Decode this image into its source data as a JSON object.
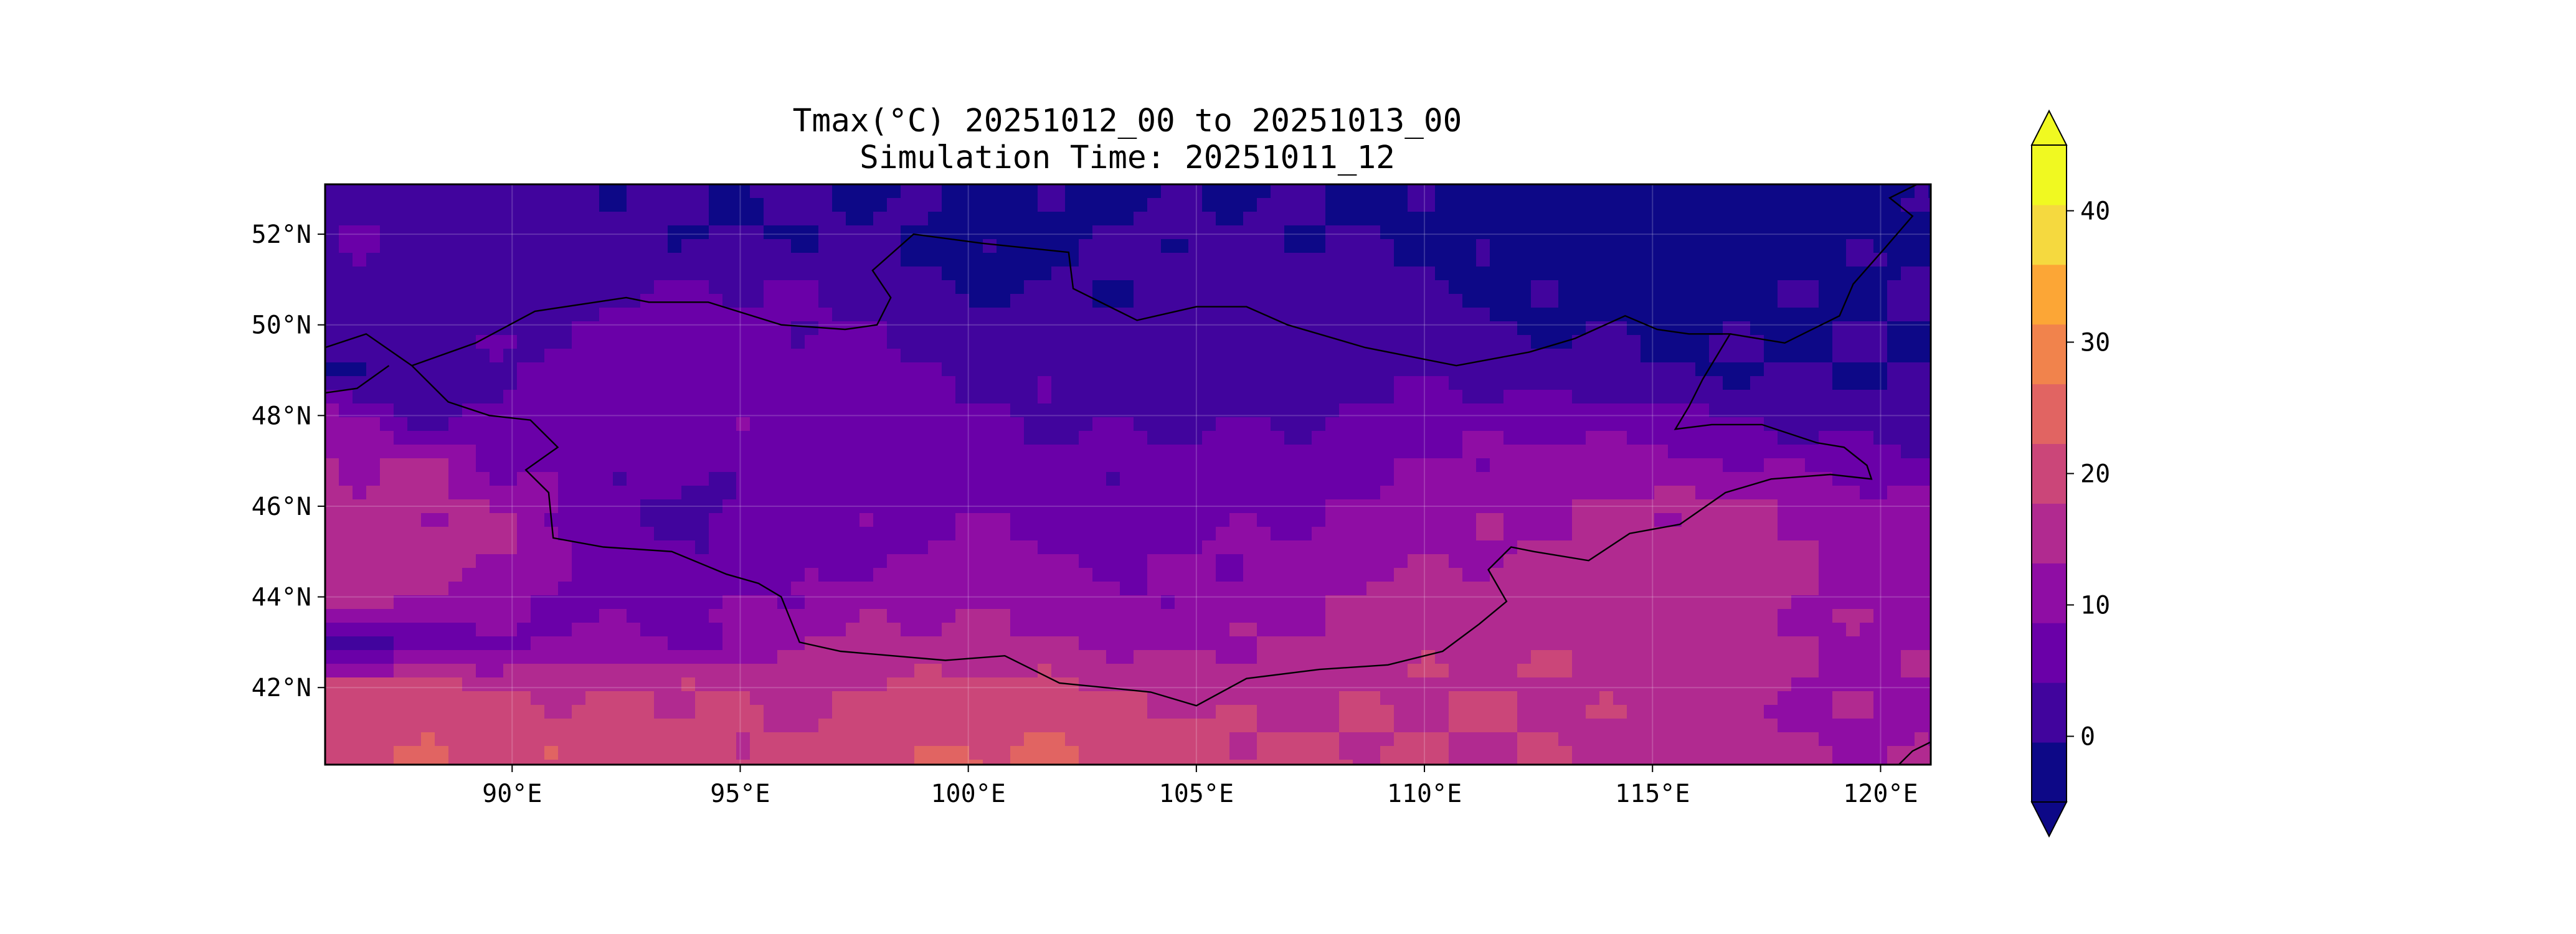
{
  "title": "Tmax(°C) 20251012_00 to 20251013_00",
  "subtitle": "Simulation Time: 20251011_12",
  "map": {
    "projection": "PlateCarree",
    "extent": {
      "lon": [
        85.9,
        121.1
      ],
      "lat": [
        40.3,
        53.1
      ]
    },
    "x_ticks": [
      "90°E",
      "95°E",
      "100°E",
      "105°E",
      "110°E",
      "115°E",
      "120°E"
    ],
    "x_tick_values": [
      90,
      95,
      100,
      105,
      110,
      115,
      120
    ],
    "y_ticks": [
      "42°N",
      "44°N",
      "46°N",
      "48°N",
      "50°N",
      "52°N"
    ],
    "y_tick_values": [
      42,
      44,
      46,
      48,
      50,
      52
    ],
    "gridlines": true,
    "borders": "country borders (Mongolia, China, Russia, Kazakhstan)"
  },
  "colorbar": {
    "orientation": "vertical",
    "placement": "right",
    "extend": "both",
    "levels": [
      -5,
      0,
      5,
      10,
      15,
      20,
      25,
      30,
      35,
      40,
      45
    ],
    "tick_labels": [
      "0",
      "10",
      "20",
      "30",
      "40"
    ],
    "tick_values": [
      0,
      10,
      20,
      30,
      40
    ],
    "colormap": "plasma",
    "colors": [
      "#0d0887",
      "#41049d",
      "#6a00a8",
      "#8f0da4",
      "#b12a90",
      "#cb4679",
      "#e16462",
      "#f1834c",
      "#fca636",
      "#f5d93f",
      "#f0f921"
    ],
    "under_color": "#0d0887",
    "over_color": "#f0f921"
  },
  "chart_data": {
    "type": "heatmap",
    "title": "Tmax(°C) 20251012_00 to 20251013_00",
    "subtitle": "Simulation Time: 20251011_12",
    "xlim": [
      85.9,
      121.1
    ],
    "ylim": [
      40.3,
      53.1
    ],
    "x": [
      86,
      88,
      90,
      92,
      94,
      96,
      98,
      100,
      102,
      104,
      106,
      108,
      110,
      112,
      114,
      116,
      118,
      120
    ],
    "y": [
      53,
      52,
      51,
      50,
      49,
      48,
      47,
      46,
      45,
      44,
      43,
      42,
      41,
      40.5
    ],
    "z": [
      [
        2,
        3,
        3,
        1,
        0,
        1,
        0,
        -1,
        -1,
        -1,
        0,
        0,
        -1,
        -1,
        -2,
        -2,
        -2,
        -1
      ],
      [
        5,
        4,
        3,
        2,
        0,
        0,
        1,
        -2,
        -1,
        1,
        1,
        0,
        -1,
        -2,
        -2,
        -2,
        -2,
        -1
      ],
      [
        4,
        2,
        1,
        3,
        5,
        5,
        2,
        -1,
        0,
        1,
        3,
        2,
        0,
        -1,
        -2,
        -2,
        -1,
        0
      ],
      [
        2,
        1,
        4,
        6,
        7,
        6,
        5,
        3,
        2,
        1,
        2,
        3,
        2,
        0,
        -1,
        -1,
        -1,
        0
      ],
      [
        -1,
        3,
        5,
        8,
        8,
        8,
        6,
        4,
        3,
        3,
        2,
        3,
        4,
        2,
        1,
        0,
        0,
        0
      ],
      [
        12,
        3,
        7,
        8,
        9,
        9,
        7,
        6,
        4,
        4,
        4,
        5,
        7,
        8,
        7,
        6,
        3,
        2
      ],
      [
        15,
        16,
        8,
        7,
        6,
        9,
        9,
        7,
        6,
        6,
        7,
        8,
        10,
        11,
        12,
        11,
        9,
        6
      ],
      [
        16,
        16,
        14,
        6,
        3,
        7,
        9,
        9,
        8,
        7,
        8,
        10,
        12,
        14,
        16,
        16,
        15,
        12
      ],
      [
        17,
        17,
        16,
        8,
        5,
        6,
        9,
        11,
        10,
        9,
        11,
        13,
        14,
        15,
        17,
        17,
        16,
        13
      ],
      [
        18,
        16,
        12,
        6,
        9,
        10,
        13,
        14,
        12,
        10,
        12,
        15,
        17,
        18,
        18,
        17,
        16,
        13
      ],
      [
        2,
        6,
        9,
        12,
        8,
        14,
        16,
        16,
        15,
        14,
        15,
        16,
        18,
        19,
        19,
        18,
        15,
        14
      ],
      [
        22,
        22,
        20,
        19,
        21,
        18,
        20,
        22,
        21,
        19,
        18,
        19,
        20,
        20,
        19,
        17,
        15,
        14
      ],
      [
        23,
        24,
        23,
        22,
        21,
        20,
        22,
        25,
        24,
        22,
        20,
        20,
        20,
        20,
        19,
        17,
        15,
        14
      ],
      [
        24,
        25,
        24,
        23,
        22,
        21,
        23,
        26,
        25,
        24,
        21,
        21,
        20,
        20,
        19,
        17,
        16,
        15
      ]
    ],
    "units": "°C",
    "levels": [
      -5,
      0,
      5,
      10,
      15,
      20,
      25,
      30,
      35,
      40,
      45
    ]
  }
}
